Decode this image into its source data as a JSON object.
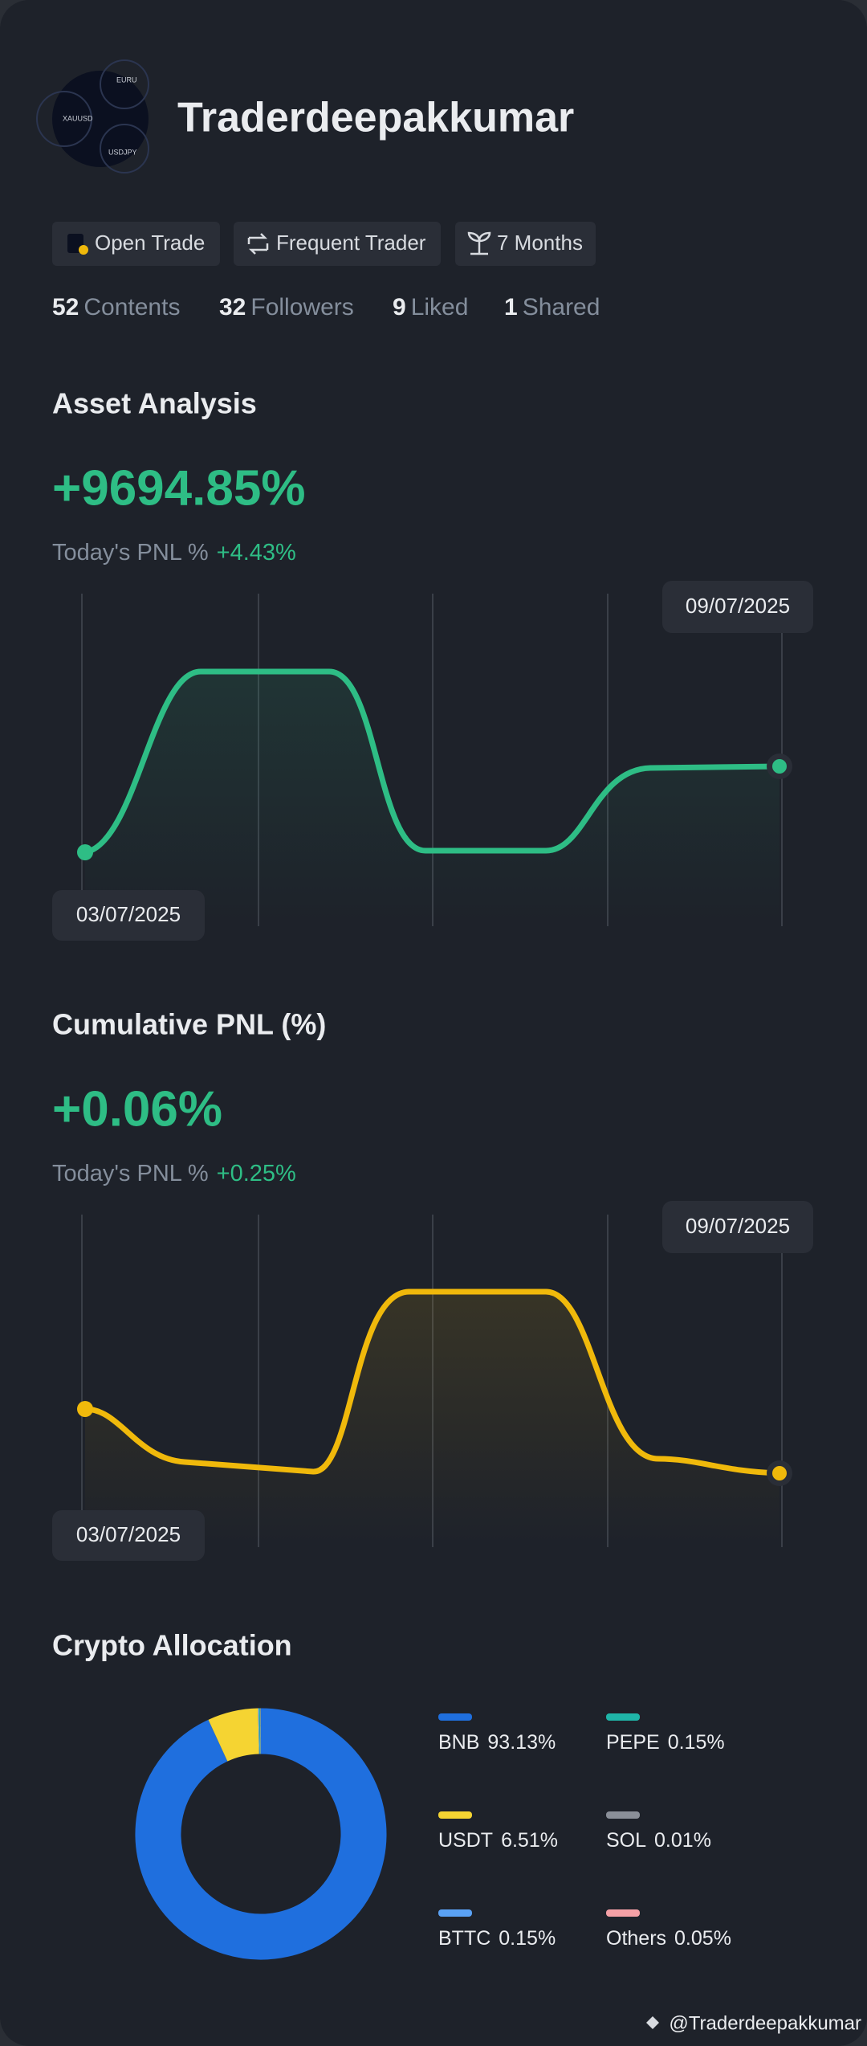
{
  "profile": {
    "name": "Traderdeepakkumar",
    "avatar_labels": [
      "EURU",
      "XAUUSD",
      "USDJPY"
    ],
    "badges": [
      "Open Trade",
      "Frequent Trader",
      "7 Months"
    ],
    "stats": [
      {
        "value": 52,
        "label": "Contents"
      },
      {
        "value": 32,
        "label": "Followers"
      },
      {
        "value": 9,
        "label": "Liked"
      },
      {
        "value": 1,
        "label": "Shared"
      }
    ]
  },
  "asset_analysis": {
    "title": "Asset Analysis",
    "value": "+9694.85%",
    "pnl_label": "Today's PNL %",
    "pnl_value": "+4.43%",
    "start_date": "03/07/2025",
    "end_date": "09/07/2025"
  },
  "cumulative_pnl": {
    "title": "Cumulative PNL (%)",
    "value": "+0.06%",
    "pnl_label": "Today's PNL %",
    "pnl_value": "+0.25%",
    "start_date": "03/07/2025",
    "end_date": "09/07/2025"
  },
  "crypto_allocation": {
    "title": "Crypto Allocation",
    "items": [
      {
        "name": "BNB",
        "value": 93.13,
        "value_label": "93.13%",
        "color": "#1f6fde"
      },
      {
        "name": "USDT",
        "value": 6.51,
        "value_label": "6.51%",
        "color": "#f5d432"
      },
      {
        "name": "BTTC",
        "value": 0.15,
        "value_label": "0.15%",
        "color": "#5aa2f5"
      },
      {
        "name": "PEPE",
        "value": 0.15,
        "value_label": "0.15%",
        "color": "#1fb5a8"
      },
      {
        "name": "SOL",
        "value": 0.01,
        "value_label": "0.01%",
        "color": "#8a8f98"
      },
      {
        "name": "Others",
        "value": 0.05,
        "value_label": "0.05%",
        "color": "#f4a0a6"
      }
    ]
  },
  "watermark": "@Traderdeepakkumar"
}
